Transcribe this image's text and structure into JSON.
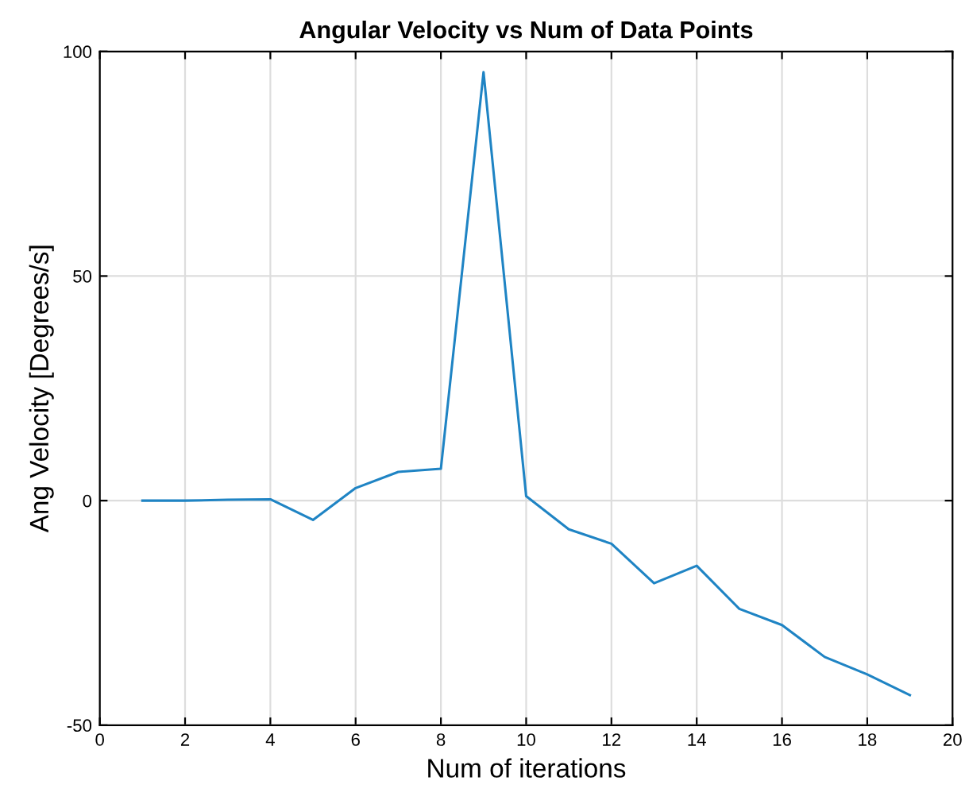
{
  "chart_data": {
    "type": "line",
    "title": "Angular Velocity vs Num of Data Points",
    "xlabel": "Num of iterations",
    "ylabel": "Ang Velocity [Degrees/s]",
    "x": [
      1,
      2,
      3,
      4,
      5,
      6,
      7,
      8,
      9,
      10,
      11,
      12,
      13,
      14,
      15,
      16,
      17,
      18,
      19
    ],
    "series": [
      {
        "color": "#1f84c4",
        "values": [
          0,
          0,
          0.2,
          0.3,
          -4.3,
          2.8,
          6.4,
          7.1,
          95.4,
          1,
          -6.4,
          -9.6,
          -18.4,
          -14.5,
          -24.1,
          -27.7,
          -34.8,
          -38.7,
          -43.3
        ]
      }
    ],
    "xlim": [
      0,
      20
    ],
    "xticks": [
      0,
      2,
      4,
      6,
      8,
      10,
      12,
      14,
      16,
      18,
      20
    ],
    "ylim": [
      -50,
      100
    ],
    "yticks": [
      -50,
      0,
      50,
      100
    ],
    "grid": true
  }
}
